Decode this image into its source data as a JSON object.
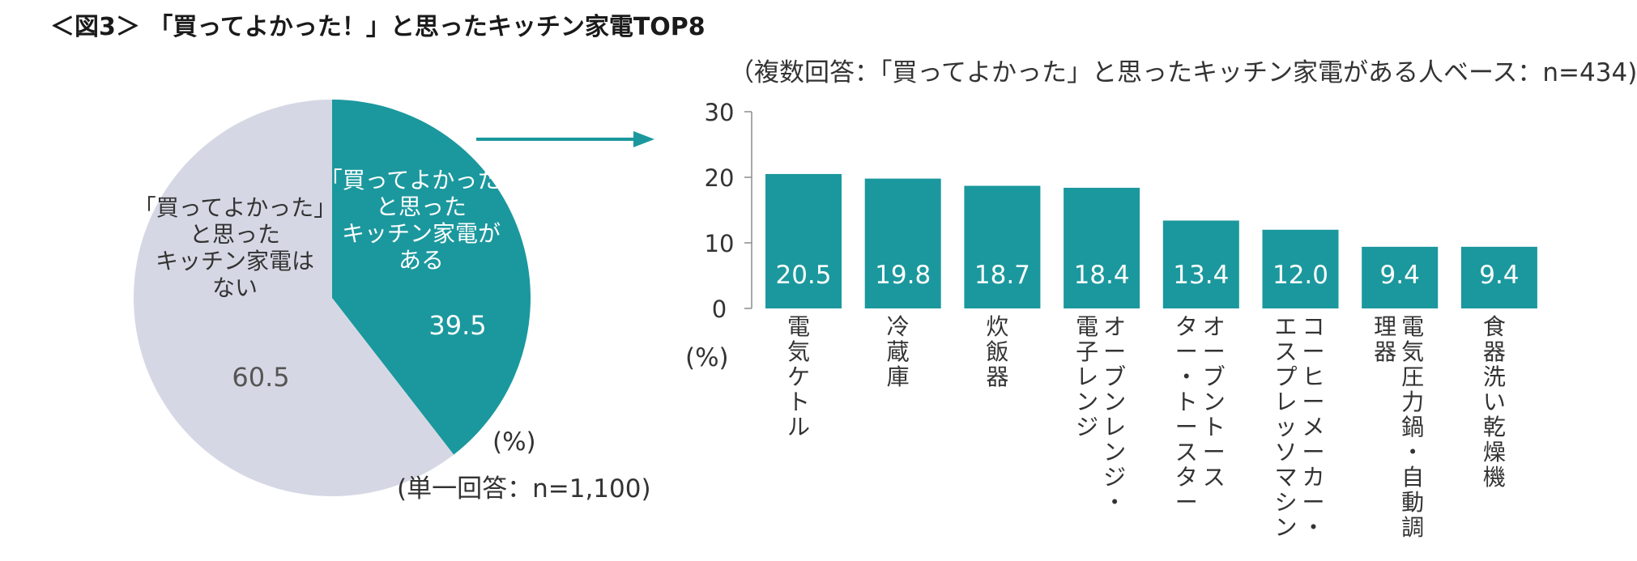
{
  "title": "＜図3＞ 「買ってよかった！」と思ったキッチン家電TOP8",
  "colors": {
    "teal": "#1b989e",
    "gray": "#d5d8e4",
    "axis": "#8c8c8c"
  },
  "chart_data": [
    {
      "type": "pie",
      "note": "(単一回答：n=1,100)",
      "unit": "(%)",
      "slices": [
        {
          "label_lines": [
            "「買ってよかった」",
            "と思った",
            "キッチン家電が",
            "ある"
          ],
          "value": 39.5,
          "value_label": "39.5",
          "color": "#1b989e"
        },
        {
          "label_lines": [
            "「買ってよかった」",
            "と思った",
            "キッチン家電は",
            "ない"
          ],
          "value": 60.5,
          "value_label": "60.5",
          "color": "#d5d8e4"
        }
      ]
    },
    {
      "type": "bar",
      "note": "（複数回答：「買ってよかった」と思ったキッチン家電がある人ベース：n=434)",
      "unit": "(%)",
      "ylim": [
        0,
        30
      ],
      "yticks": [
        0,
        10,
        20,
        30
      ],
      "ytick_labels": [
        "0",
        "10",
        "20",
        "30"
      ],
      "categories": [
        {
          "name": "電気ケトル",
          "columns": [
            "電気ケトル"
          ]
        },
        {
          "name": "冷蔵庫",
          "columns": [
            "冷蔵庫"
          ]
        },
        {
          "name": "炊飯器",
          "columns": [
            "炊飯器"
          ]
        },
        {
          "name": "オーブンレンジ・電子レンジ",
          "columns": [
            "オーブンレンジ・",
            "電子レンジ"
          ]
        },
        {
          "name": "オーブントースター・トースター",
          "columns": [
            "オーブントース",
            "ター・トースター"
          ]
        },
        {
          "name": "コーヒーメーカー・エスプレッソマシン",
          "columns": [
            "コーヒーメーカー・",
            "エスプレッソマシン"
          ]
        },
        {
          "name": "電気圧力鍋・自動調理器",
          "columns": [
            "電気圧力鍋・自動調",
            "理器"
          ]
        },
        {
          "name": "食器洗い乾燥機",
          "columns": [
            "食器洗い乾燥機"
          ]
        }
      ],
      "values": [
        20.5,
        19.8,
        18.7,
        18.4,
        13.4,
        12.0,
        9.4,
        9.4
      ],
      "value_labels": [
        "20.5",
        "19.8",
        "18.7",
        "18.4",
        "13.4",
        "12.0",
        "9.4",
        "9.4"
      ]
    }
  ]
}
